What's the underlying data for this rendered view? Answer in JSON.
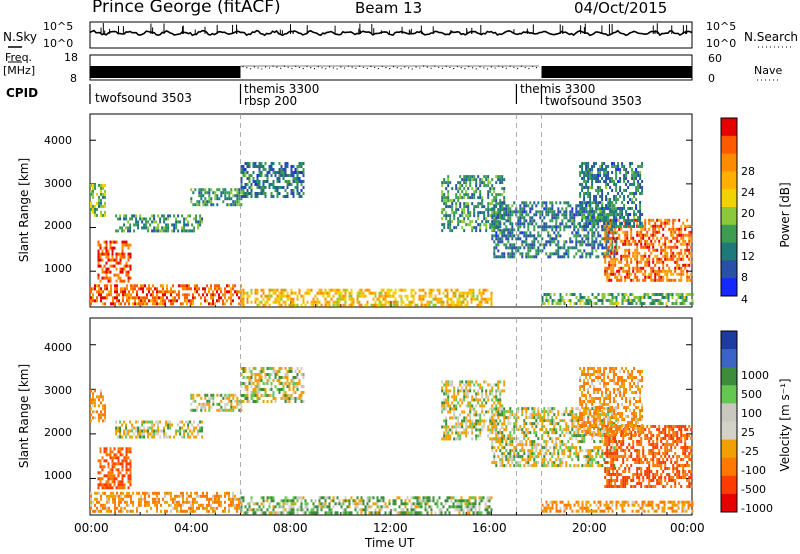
{
  "header": {
    "station": "Prince George (fitACF)",
    "beam": "Beam 13",
    "date": "04/Oct/2015"
  },
  "noise_panel": {
    "left_label": "N.Sky",
    "right_label": "N.Search",
    "left_ticks": [
      "10^5",
      "10^0"
    ],
    "right_ticks": [
      "10^5",
      "10^0"
    ]
  },
  "freq_panel": {
    "left_label_top": "Freq.",
    "left_label_bottom": "[MHz]",
    "right_label": "Nave",
    "left_ticks": [
      "18",
      "8"
    ],
    "right_ticks": [
      "60",
      "0"
    ]
  },
  "cpid_panel": {
    "label": "CPID",
    "segments": [
      {
        "start_h": 0,
        "end_h": 6,
        "lines": [
          "twofsound 3503"
        ]
      },
      {
        "start_h": 6,
        "end_h": 17,
        "lines": [
          "themis 3300",
          "rbsp 200"
        ]
      },
      {
        "start_h": 17,
        "end_h": 18,
        "lines": [
          "themis 3300"
        ]
      },
      {
        "start_h": 18,
        "end_h": 24,
        "lines": [
          "twofsound 3503"
        ]
      }
    ]
  },
  "time_axis": {
    "label": "Time UT",
    "ticks": [
      "00:00",
      "04:00",
      "08:00",
      "12:00",
      "16:00",
      "20:00",
      "00:00"
    ]
  },
  "power_colorbar": {
    "label": "Power [dB]",
    "ticks": [
      "28",
      "24",
      "20",
      "16",
      "12",
      "8",
      "4"
    ],
    "colors": [
      "#e60000",
      "#ff5a00",
      "#ff8c00",
      "#ffb000",
      "#f2d200",
      "#8cc83c",
      "#3c9c50",
      "#1e7a78",
      "#2850a8",
      "#1428ff"
    ]
  },
  "velocity_colorbar": {
    "label": "Velocity [m s⁻¹]",
    "ticks": [
      "1000",
      "500",
      "100",
      "25",
      "-25",
      "-100",
      "-500",
      "-1000"
    ],
    "colors": [
      "#1e3ca0",
      "#3c64c8",
      "#3c8c3c",
      "#64c850",
      "#c8c8c0",
      "#d2d2c8",
      "#f0a000",
      "#ff7800",
      "#ff3c00",
      "#e60000"
    ]
  },
  "chart_data": [
    {
      "type": "heatmap",
      "name": "power",
      "xlabel": "Time UT",
      "ylabel": "Slant Range [km]",
      "xlim": [
        0,
        24
      ],
      "ylim": [
        180,
        4600
      ],
      "yticks": [
        1000,
        2000,
        3000,
        4000
      ],
      "cpid_change_times_h": [
        6,
        17,
        18
      ],
      "clabel": "Power [dB]",
      "clim": [
        0,
        32
      ],
      "features": [
        {
          "t_start": 0.0,
          "t_end": 6.0,
          "r_start": 250,
          "r_end": 700,
          "value": 26
        },
        {
          "t_start": 0.3,
          "t_end": 1.6,
          "r_start": 800,
          "r_end": 1700,
          "value": 28
        },
        {
          "t_start": 0.0,
          "t_end": 0.6,
          "r_start": 2300,
          "r_end": 3000,
          "value": 14
        },
        {
          "t_start": 1.0,
          "t_end": 4.5,
          "r_start": 1900,
          "r_end": 2300,
          "value": 10
        },
        {
          "t_start": 4.0,
          "t_end": 6.0,
          "r_start": 2500,
          "r_end": 2900,
          "value": 10
        },
        {
          "t_start": 6.0,
          "t_end": 8.5,
          "r_start": 2700,
          "r_end": 3500,
          "value": 8
        },
        {
          "t_start": 6.0,
          "t_end": 16.0,
          "r_start": 250,
          "r_end": 600,
          "value": 20
        },
        {
          "t_start": 14.0,
          "t_end": 16.5,
          "r_start": 1900,
          "r_end": 3200,
          "value": 10
        },
        {
          "t_start": 16.0,
          "t_end": 21.0,
          "r_start": 1300,
          "r_end": 2600,
          "value": 8
        },
        {
          "t_start": 20.5,
          "t_end": 24.0,
          "r_start": 800,
          "r_end": 2200,
          "value": 26
        },
        {
          "t_start": 18.0,
          "t_end": 24.0,
          "r_start": 250,
          "r_end": 500,
          "value": 12
        },
        {
          "t_start": 19.5,
          "t_end": 22.0,
          "r_start": 2000,
          "r_end": 3500,
          "value": 8
        }
      ]
    },
    {
      "type": "heatmap",
      "name": "velocity",
      "xlabel": "Time UT",
      "ylabel": "Slant Range [km]",
      "xlim": [
        0,
        24
      ],
      "ylim": [
        180,
        4600
      ],
      "yticks": [
        1000,
        2000,
        3000,
        4000
      ],
      "cpid_change_times_h": [
        6,
        17,
        18
      ],
      "clabel": "Velocity [m s⁻¹]",
      "clim": [
        -1000,
        1000
      ],
      "features": [
        {
          "t_start": 0.0,
          "t_end": 6.0,
          "r_start": 250,
          "r_end": 700,
          "value": -100
        },
        {
          "t_start": 0.3,
          "t_end": 1.6,
          "r_start": 800,
          "r_end": 1700,
          "value": -500
        },
        {
          "t_start": 0.0,
          "t_end": 0.6,
          "r_start": 2300,
          "r_end": 3000,
          "value": -100
        },
        {
          "t_start": 1.0,
          "t_end": 4.5,
          "r_start": 1900,
          "r_end": 2300,
          "value": 0
        },
        {
          "t_start": 4.0,
          "t_end": 6.0,
          "r_start": 2500,
          "r_end": 2900,
          "value": 0
        },
        {
          "t_start": 6.0,
          "t_end": 8.5,
          "r_start": 2700,
          "r_end": 3500,
          "value": 0
        },
        {
          "t_start": 6.0,
          "t_end": 16.0,
          "r_start": 250,
          "r_end": 600,
          "value": 50
        },
        {
          "t_start": 14.0,
          "t_end": 16.5,
          "r_start": 1900,
          "r_end": 3200,
          "value": 0
        },
        {
          "t_start": 16.0,
          "t_end": 21.0,
          "r_start": 1300,
          "r_end": 2600,
          "value": 0
        },
        {
          "t_start": 20.5,
          "t_end": 24.0,
          "r_start": 800,
          "r_end": 2200,
          "value": -500
        },
        {
          "t_start": 18.0,
          "t_end": 24.0,
          "r_start": 250,
          "r_end": 500,
          "value": -100
        },
        {
          "t_start": 19.5,
          "t_end": 22.0,
          "r_start": 2000,
          "r_end": 3500,
          "value": -100
        }
      ]
    }
  ]
}
